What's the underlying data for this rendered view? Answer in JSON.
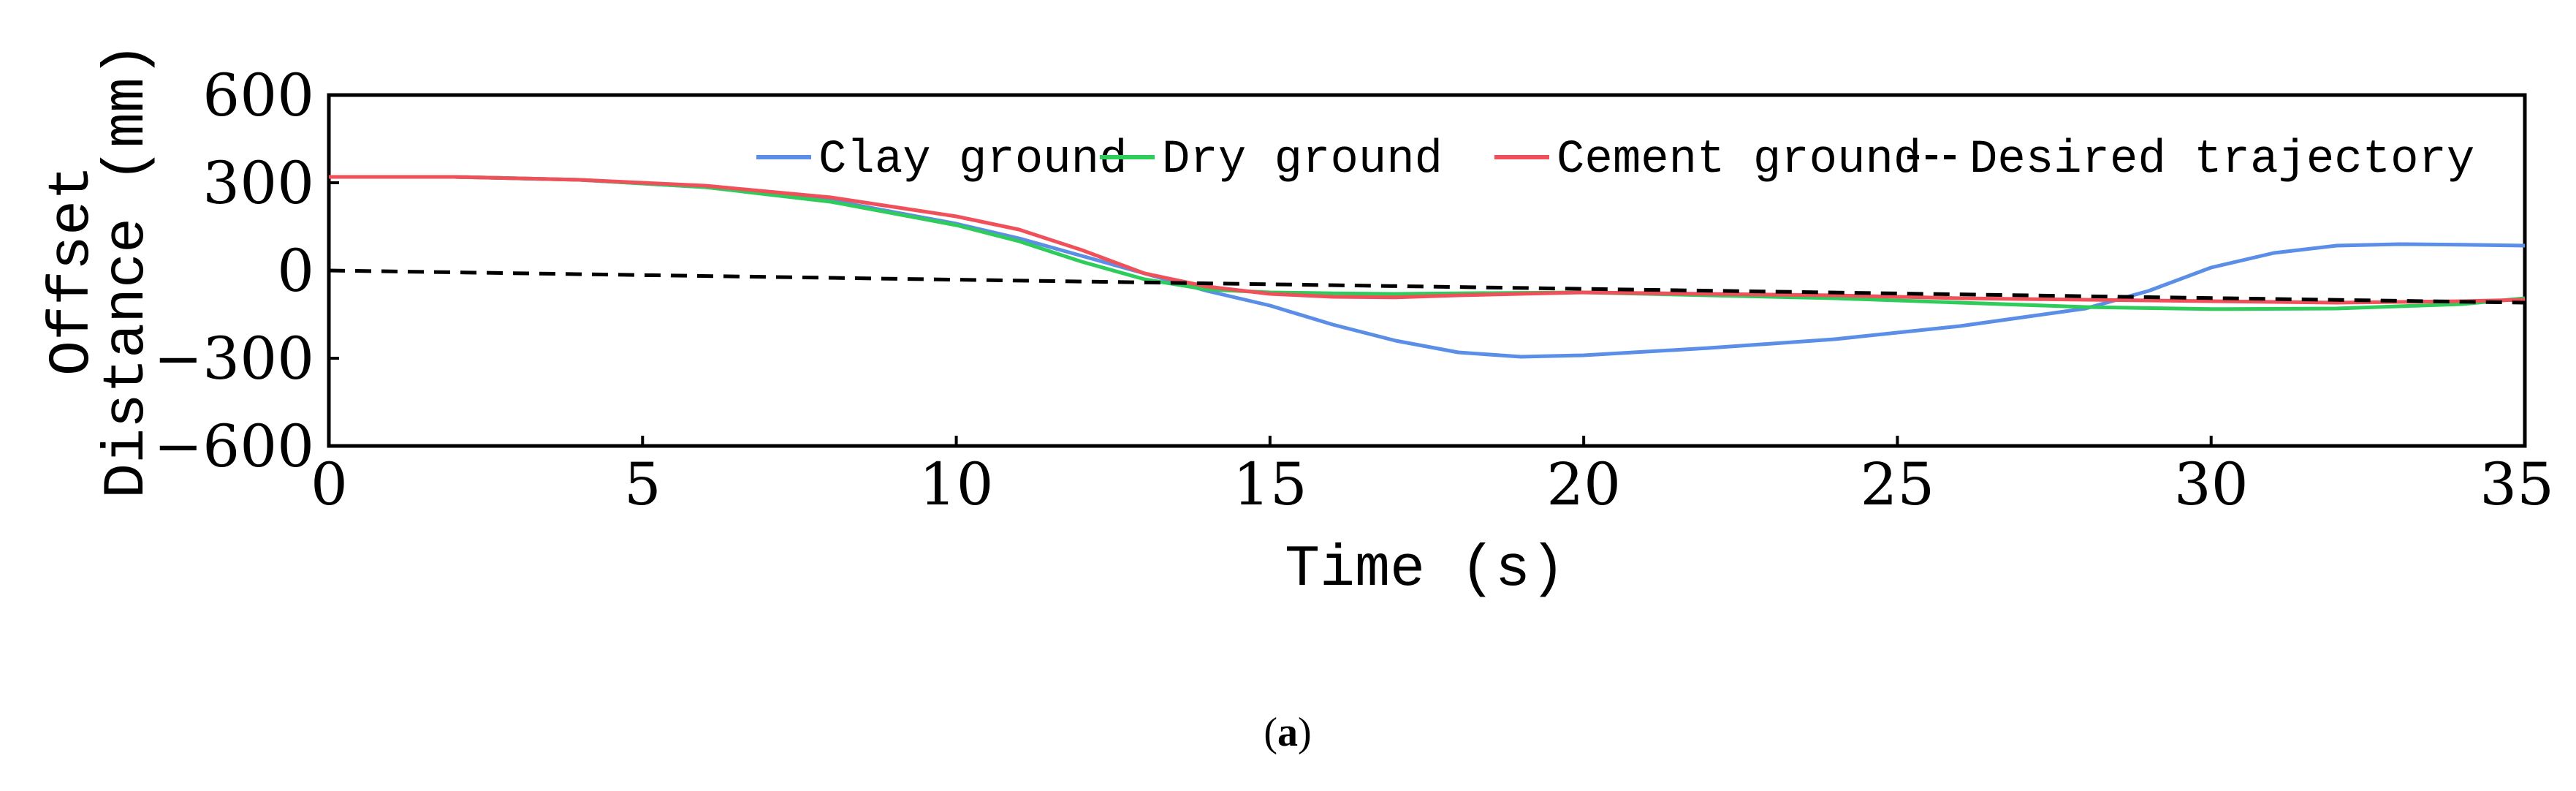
{
  "chart_data": {
    "type": "line",
    "title": "",
    "xlabel": "Time (s)",
    "ylabel_lines": [
      "Offset",
      "Distance (mm)"
    ],
    "xlim": [
      0,
      35
    ],
    "ylim": [
      -600,
      600
    ],
    "xticks": [
      0,
      5,
      10,
      15,
      20,
      25,
      30,
      35
    ],
    "yticks": [
      600,
      300,
      0,
      -300,
      -600
    ],
    "grid": false,
    "legend_position": "top",
    "series": [
      {
        "name": "Clay ground",
        "color": "#5b8ee6",
        "style": "solid",
        "x": [
          0,
          2,
          4,
          6,
          8,
          10,
          11,
          12,
          13,
          14,
          15,
          16,
          17,
          18,
          19,
          20,
          22,
          24,
          26,
          27,
          28,
          29,
          30,
          31,
          32,
          33,
          34,
          35
        ],
        "y": [
          320,
          320,
          310,
          285,
          240,
          160,
          110,
          50,
          -10,
          -70,
          -120,
          -185,
          -240,
          -280,
          -295,
          -290,
          -265,
          -235,
          -190,
          -160,
          -130,
          -70,
          10,
          60,
          85,
          90,
          88,
          85
        ]
      },
      {
        "name": "Dry ground",
        "color": "#2ecc5a",
        "style": "solid",
        "x": [
          0,
          2,
          4,
          6,
          8,
          10,
          11,
          12,
          13,
          14,
          15,
          16,
          17,
          18,
          20,
          22,
          24,
          26,
          28,
          30,
          32,
          34,
          35
        ],
        "y": [
          320,
          320,
          310,
          285,
          235,
          155,
          100,
          30,
          -30,
          -65,
          -75,
          -78,
          -80,
          -78,
          -75,
          -85,
          -95,
          -110,
          -125,
          -132,
          -130,
          -115,
          -95
        ]
      },
      {
        "name": "Cement ground",
        "color": "#f0505a",
        "style": "solid",
        "x": [
          0,
          2,
          4,
          6,
          8,
          10,
          11,
          12,
          13,
          14,
          15,
          16,
          17,
          18,
          20,
          22,
          24,
          26,
          28,
          30,
          32,
          34,
          35
        ],
        "y": [
          320,
          320,
          310,
          290,
          250,
          185,
          140,
          70,
          -10,
          -55,
          -80,
          -90,
          -92,
          -85,
          -75,
          -80,
          -85,
          -95,
          -100,
          -105,
          -110,
          -105,
          -100
        ]
      },
      {
        "name": "Desired trajectory",
        "color": "#000000",
        "style": "dashed",
        "x": [
          0,
          35
        ],
        "y": [
          0,
          -110
        ]
      }
    ]
  },
  "caption": {
    "open": "(",
    "letter": "a",
    "close": ")"
  }
}
